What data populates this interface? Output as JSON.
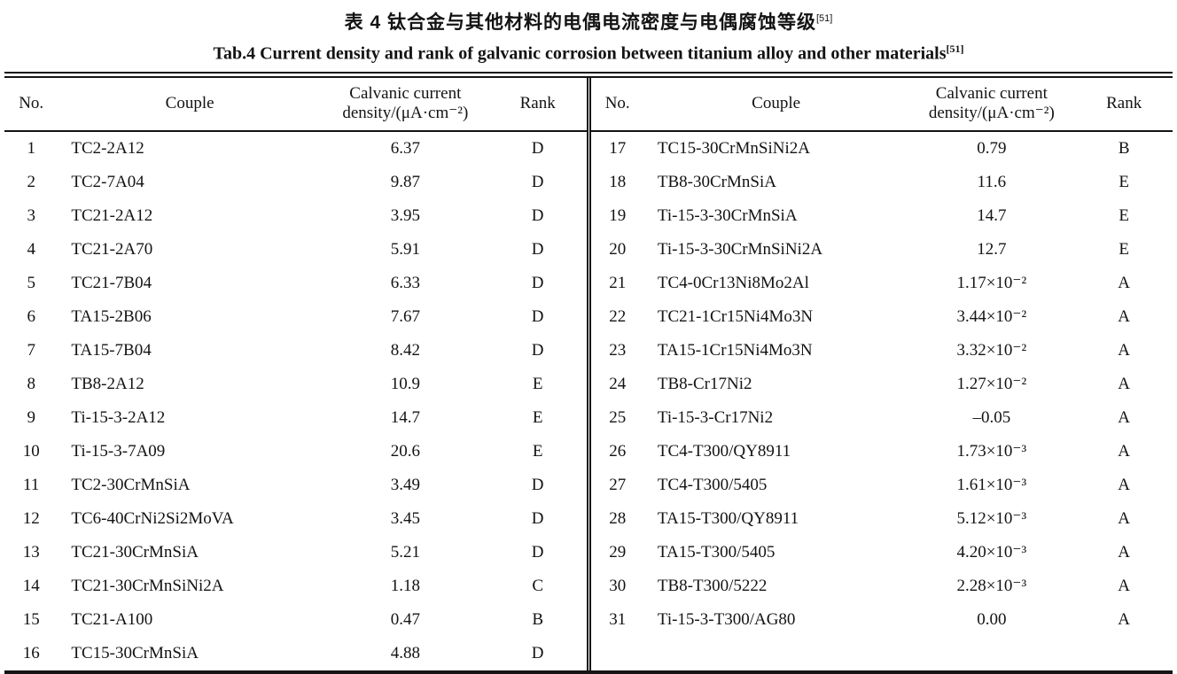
{
  "title": {
    "zh": "表 4  钛合金与其他材料的电偶电流密度与电偶腐蚀等级",
    "zh_ref": "[51]",
    "en": "Tab.4 Current density and rank of galvanic corrosion between titanium alloy and other materials",
    "en_ref": "[51]"
  },
  "table": {
    "header": {
      "no": "No.",
      "couple": "Couple",
      "density_line1": "Calvanic current",
      "density_line2": "density/(μA·cm⁻²)",
      "rank": "Rank"
    },
    "left_rows": [
      {
        "no": "1",
        "couple": "TC2-2A12",
        "density": "6.37",
        "rank": "D"
      },
      {
        "no": "2",
        "couple": "TC2-7A04",
        "density": "9.87",
        "rank": "D"
      },
      {
        "no": "3",
        "couple": "TC21-2A12",
        "density": "3.95",
        "rank": "D"
      },
      {
        "no": "4",
        "couple": "TC21-2A70",
        "density": "5.91",
        "rank": "D"
      },
      {
        "no": "5",
        "couple": "TC21-7B04",
        "density": "6.33",
        "rank": "D"
      },
      {
        "no": "6",
        "couple": "TA15-2B06",
        "density": "7.67",
        "rank": "D"
      },
      {
        "no": "7",
        "couple": "TA15-7B04",
        "density": "8.42",
        "rank": "D"
      },
      {
        "no": "8",
        "couple": "TB8-2A12",
        "density": "10.9",
        "rank": "E"
      },
      {
        "no": "9",
        "couple": "Ti-15-3-2A12",
        "density": "14.7",
        "rank": "E"
      },
      {
        "no": "10",
        "couple": "Ti-15-3-7A09",
        "density": "20.6",
        "rank": "E"
      },
      {
        "no": "11",
        "couple": "TC2-30CrMnSiA",
        "density": "3.49",
        "rank": "D"
      },
      {
        "no": "12",
        "couple": "TC6-40CrNi2Si2MoVA",
        "density": "3.45",
        "rank": "D"
      },
      {
        "no": "13",
        "couple": "TC21-30CrMnSiA",
        "density": "5.21",
        "rank": "D"
      },
      {
        "no": "14",
        "couple": "TC21-30CrMnSiNi2A",
        "density": "1.18",
        "rank": "C"
      },
      {
        "no": "15",
        "couple": "TC21-A100",
        "density": "0.47",
        "rank": "B"
      },
      {
        "no": "16",
        "couple": "TC15-30CrMnSiA",
        "density": "4.88",
        "rank": "D"
      }
    ],
    "right_rows": [
      {
        "no": "17",
        "couple": "TC15-30CrMnSiNi2A",
        "density": "0.79",
        "rank": "B"
      },
      {
        "no": "18",
        "couple": "TB8-30CrMnSiA",
        "density": "11.6",
        "rank": "E"
      },
      {
        "no": "19",
        "couple": "Ti-15-3-30CrMnSiA",
        "density": "14.7",
        "rank": "E"
      },
      {
        "no": "20",
        "couple": "Ti-15-3-30CrMnSiNi2A",
        "density": "12.7",
        "rank": "E"
      },
      {
        "no": "21",
        "couple": "TC4-0Cr13Ni8Mo2Al",
        "density": "1.17×10⁻²",
        "rank": "A"
      },
      {
        "no": "22",
        "couple": "TC21-1Cr15Ni4Mo3N",
        "density": "3.44×10⁻²",
        "rank": "A"
      },
      {
        "no": "23",
        "couple": "TA15-1Cr15Ni4Mo3N",
        "density": "3.32×10⁻²",
        "rank": "A"
      },
      {
        "no": "24",
        "couple": "TB8-Cr17Ni2",
        "density": "1.27×10⁻²",
        "rank": "A"
      },
      {
        "no": "25",
        "couple": "Ti-15-3-Cr17Ni2",
        "density": "–0.05",
        "rank": "A"
      },
      {
        "no": "26",
        "couple": "TC4-T300/QY8911",
        "density": "1.73×10⁻³",
        "rank": "A"
      },
      {
        "no": "27",
        "couple": "TC4-T300/5405",
        "density": "1.61×10⁻³",
        "rank": "A"
      },
      {
        "no": "28",
        "couple": "TA15-T300/QY8911",
        "density": "5.12×10⁻³",
        "rank": "A"
      },
      {
        "no": "29",
        "couple": "TA15-T300/5405",
        "density": "4.20×10⁻³",
        "rank": "A"
      },
      {
        "no": "30",
        "couple": "TB8-T300/5222",
        "density": "2.28×10⁻³",
        "rank": "A"
      },
      {
        "no": "31",
        "couple": "Ti-15-3-T300/AG80",
        "density": "0.00",
        "rank": "A"
      }
    ]
  }
}
